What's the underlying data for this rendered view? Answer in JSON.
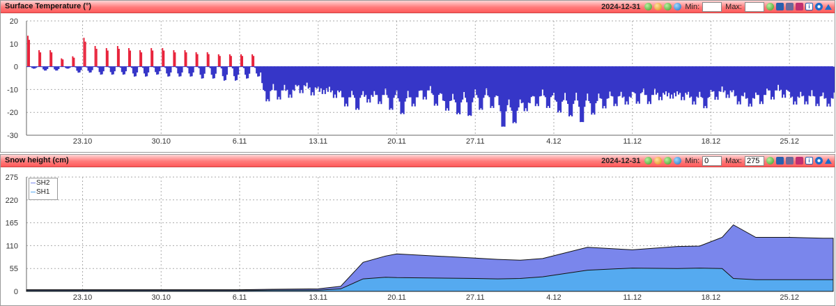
{
  "panels": {
    "temp": {
      "title": "Surface Temperature (°)",
      "date": "2024-12-31",
      "min_label": "Min:",
      "max_label": "Max:",
      "min_value": "",
      "max_value": "",
      "y_ticks": [
        "20",
        "10",
        "0",
        "-10",
        "-20",
        "-30"
      ],
      "x_ticks": [
        "23.10",
        "30.10",
        "6.11",
        "13.11",
        "20.11",
        "27.11",
        "4.12",
        "11.12",
        "18.12",
        "25.12"
      ]
    },
    "snow": {
      "title": "Snow height (cm)",
      "date": "2024-12-31",
      "min_label": "Min:",
      "max_label": "Max:",
      "min_value": "0",
      "max_value": "275",
      "y_ticks": [
        "275",
        "220",
        "165",
        "110",
        "55",
        "0"
      ],
      "x_ticks": [
        "23.10",
        "30.10",
        "6.11",
        "13.11",
        "20.11",
        "27.11",
        "4.12",
        "11.12",
        "18.12",
        "25.12"
      ],
      "legend": [
        "SH2",
        "SH1"
      ]
    }
  },
  "icons": [
    "refresh-icon",
    "prev-icon",
    "next-icon",
    "download-icon",
    "save-icon",
    "print-icon",
    "popout-icon",
    "info-icon",
    "settings-icon",
    "collapse-icon"
  ],
  "colors": {
    "positive": "#e8243c",
    "negative": "#3636c8",
    "sh2": "#7a86ec",
    "sh1": "#55aaf0",
    "header": "#ff6b6b"
  },
  "chart_data": [
    {
      "type": "area",
      "title": "Surface Temperature (°)",
      "ylim": [
        -30,
        20
      ],
      "x_ticks": [
        "23.10",
        "30.10",
        "6.11",
        "13.11",
        "20.11",
        "27.11",
        "4.12",
        "11.12",
        "18.12",
        "25.12"
      ],
      "series": [
        {
          "x": [
            "18.10",
            "19.10",
            "20.10",
            "21.10",
            "22.10",
            "23.10",
            "24.10",
            "25.10",
            "26.10",
            "27.10",
            "28.10",
            "29.10",
            "30.10",
            "31.10",
            "1.11",
            "2.11",
            "3.11",
            "4.11",
            "5.11",
            "6.11",
            "7.11",
            "8.11",
            "9.11",
            "10.11",
            "11.11",
            "12.11",
            "13.11",
            "14.11",
            "15.11",
            "16.11",
            "17.11",
            "18.11",
            "19.11",
            "20.11",
            "21.11",
            "22.11",
            "23.11",
            "24.11",
            "25.11",
            "26.11",
            "27.11",
            "28.11",
            "29.11",
            "30.11",
            "1.12",
            "2.12",
            "3.12",
            "4.12",
            "5.12",
            "6.12",
            "7.12",
            "8.12",
            "9.12",
            "10.12",
            "11.12",
            "12.12",
            "13.12",
            "14.12",
            "15.12",
            "16.12",
            "17.12",
            "18.12",
            "19.12",
            "20.12",
            "21.12",
            "22.12",
            "23.12",
            "24.12",
            "25.12",
            "26.12",
            "27.12",
            "28.12"
          ],
          "max": [
            15,
            8,
            8,
            4,
            5,
            14,
            10,
            9,
            10,
            9,
            8,
            9,
            9,
            8,
            8,
            7,
            7,
            6,
            6,
            6,
            6,
            -5,
            -6,
            -7,
            -5,
            -6,
            -9,
            -8,
            -9,
            -6,
            -10,
            -8,
            -6,
            -7,
            -9,
            -6,
            -6,
            -10,
            -8,
            -6,
            -6,
            -7,
            -8,
            -11,
            -12,
            -8,
            -7,
            -9,
            -8,
            -6,
            -9,
            -9,
            -8,
            -10,
            -6,
            -8,
            -9,
            -11,
            -9,
            -10,
            -8,
            -7,
            -8,
            -9,
            -10,
            -8,
            -6,
            -7,
            -10,
            -9,
            -8,
            -10
          ],
          "min": [
            -1,
            -2,
            -2,
            -1,
            -3,
            -3,
            -4,
            -4,
            -4,
            -5,
            -5,
            -4,
            -5,
            -5,
            -5,
            -6,
            -6,
            -7,
            -7,
            -6,
            -5,
            -15,
            -14,
            -13,
            -11,
            -12,
            -11,
            -13,
            -17,
            -19,
            -15,
            -16,
            -19,
            -21,
            -17,
            -14,
            -17,
            -19,
            -21,
            -22,
            -19,
            -18,
            -27,
            -25,
            -19,
            -17,
            -18,
            -20,
            -22,
            -25,
            -21,
            -18,
            -17,
            -16,
            -16,
            -16,
            -14,
            -13,
            -14,
            -16,
            -18,
            -14,
            -13,
            -16,
            -17,
            -16,
            -14,
            -13,
            -16,
            -16,
            -17,
            -17
          ]
        }
      ]
    },
    {
      "type": "area",
      "title": "Snow height (cm)",
      "ylim": [
        0,
        275
      ],
      "x_ticks": [
        "23.10",
        "30.10",
        "6.11",
        "13.11",
        "20.11",
        "27.11",
        "4.12",
        "11.12",
        "18.12",
        "25.12"
      ],
      "series": [
        {
          "name": "SH2",
          "x": [
            "18.10",
            "6.11",
            "9.11",
            "13.11",
            "15.11",
            "17.11",
            "19.11",
            "20.11",
            "27.11",
            "29.11",
            "1.12",
            "3.12",
            "7.12",
            "11.12",
            "15.12",
            "17.12",
            "19.12",
            "20.12",
            "22.12",
            "25.12",
            "28.12"
          ],
          "values": [
            4,
            4,
            5,
            6,
            12,
            70,
            85,
            90,
            80,
            77,
            75,
            79,
            106,
            100,
            108,
            109,
            130,
            160,
            130,
            130,
            128
          ]
        },
        {
          "name": "SH1",
          "x": [
            "18.10",
            "6.11",
            "9.11",
            "13.11",
            "15.11",
            "17.11",
            "19.11",
            "20.11",
            "27.11",
            "29.11",
            "1.12",
            "3.12",
            "7.12",
            "11.12",
            "15.12",
            "17.12",
            "19.12",
            "20.12",
            "22.12",
            "25.12",
            "28.12"
          ],
          "values": [
            2,
            2,
            3,
            3,
            6,
            30,
            34,
            33,
            31,
            30,
            31,
            35,
            51,
            56,
            55,
            56,
            55,
            31,
            28,
            28,
            28
          ]
        }
      ]
    }
  ]
}
